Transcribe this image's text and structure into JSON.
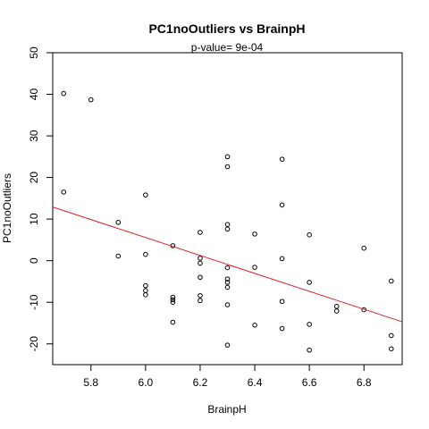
{
  "chart_data": {
    "type": "scatter",
    "title": "PC1noOutliers  vs  BrainpH",
    "subtitle": "p-value= 9e-04",
    "xlabel": "BrainpH",
    "ylabel": "PC1noOutliers",
    "xlim": [
      5.66,
      6.94
    ],
    "ylim": [
      -25,
      50
    ],
    "x_ticks": [
      5.8,
      6.0,
      6.2,
      6.4,
      6.6,
      6.8
    ],
    "x_tick_labels": [
      "5.8",
      "6.0",
      "6.2",
      "6.4",
      "6.6",
      "6.8"
    ],
    "y_ticks": [
      -20,
      -10,
      0,
      10,
      20,
      30,
      40,
      50
    ],
    "y_tick_labels": [
      "-20",
      "-10",
      "0",
      "10",
      "20",
      "30",
      "40",
      "50"
    ],
    "grid": false,
    "point_color": "#000000",
    "regression_line": {
      "color": "#dd2222",
      "x": [
        5.66,
        6.94
      ],
      "y": [
        12.9,
        -14.7
      ]
    },
    "points": [
      {
        "x": 5.7,
        "y": 40.2
      },
      {
        "x": 5.7,
        "y": 16.5
      },
      {
        "x": 5.8,
        "y": 38.7
      },
      {
        "x": 5.9,
        "y": 9.2
      },
      {
        "x": 5.9,
        "y": 1.1
      },
      {
        "x": 6.0,
        "y": 15.8
      },
      {
        "x": 6.0,
        "y": 1.5
      },
      {
        "x": 6.0,
        "y": -6.0
      },
      {
        "x": 6.0,
        "y": -7.2
      },
      {
        "x": 6.0,
        "y": -8.2
      },
      {
        "x": 6.1,
        "y": 3.6
      },
      {
        "x": 6.1,
        "y": -8.8
      },
      {
        "x": 6.1,
        "y": -9.4
      },
      {
        "x": 6.1,
        "y": -10.0
      },
      {
        "x": 6.1,
        "y": -14.8
      },
      {
        "x": 6.2,
        "y": 6.8
      },
      {
        "x": 6.2,
        "y": 0.6
      },
      {
        "x": 6.2,
        "y": -0.6
      },
      {
        "x": 6.2,
        "y": -4.0
      },
      {
        "x": 6.2,
        "y": -8.4
      },
      {
        "x": 6.2,
        "y": -9.6
      },
      {
        "x": 6.3,
        "y": 25.0
      },
      {
        "x": 6.3,
        "y": 22.6
      },
      {
        "x": 6.3,
        "y": 8.7
      },
      {
        "x": 6.3,
        "y": 7.6
      },
      {
        "x": 6.3,
        "y": -1.7
      },
      {
        "x": 6.3,
        "y": -4.4
      },
      {
        "x": 6.3,
        "y": -5.2
      },
      {
        "x": 6.3,
        "y": -6.4
      },
      {
        "x": 6.3,
        "y": -10.6
      },
      {
        "x": 6.3,
        "y": -20.3
      },
      {
        "x": 6.4,
        "y": 6.4
      },
      {
        "x": 6.4,
        "y": -1.6
      },
      {
        "x": 6.4,
        "y": -15.5
      },
      {
        "x": 6.5,
        "y": 24.4
      },
      {
        "x": 6.5,
        "y": 13.4
      },
      {
        "x": 6.5,
        "y": 0.5
      },
      {
        "x": 6.5,
        "y": -9.8
      },
      {
        "x": 6.5,
        "y": -16.3
      },
      {
        "x": 6.6,
        "y": 6.2
      },
      {
        "x": 6.6,
        "y": -5.2
      },
      {
        "x": 6.6,
        "y": -15.3
      },
      {
        "x": 6.6,
        "y": -21.5
      },
      {
        "x": 6.7,
        "y": -11.0
      },
      {
        "x": 6.7,
        "y": -12.1
      },
      {
        "x": 6.8,
        "y": 3.0
      },
      {
        "x": 6.8,
        "y": -11.8
      },
      {
        "x": 6.9,
        "y": -4.9
      },
      {
        "x": 6.9,
        "y": -18.0
      },
      {
        "x": 6.9,
        "y": -21.2
      }
    ]
  }
}
